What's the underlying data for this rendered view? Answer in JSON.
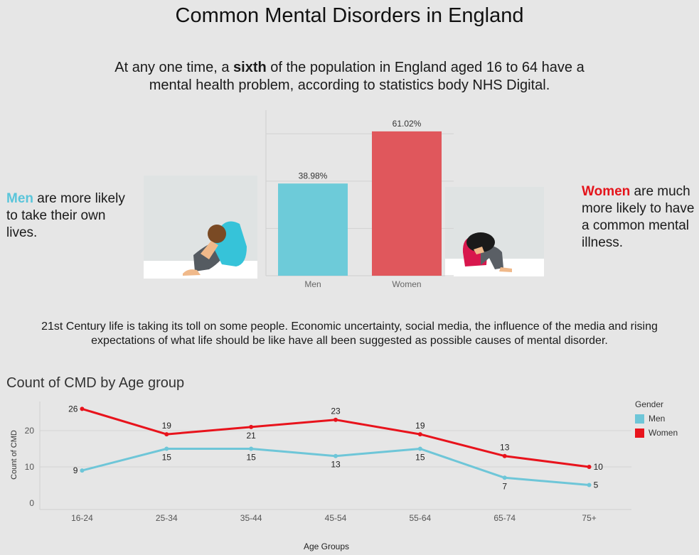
{
  "title": "Common Mental Disorders in England",
  "intro": {
    "part1": "At any one time, a ",
    "bold": "sixth",
    "part2": " of the population in England aged 16 to 64 have a mental health problem, according to statistics body NHS Digital."
  },
  "men_note": {
    "highlight": "Men",
    "rest": " are more likely to take their own lives."
  },
  "women_note": {
    "highlight": "Women",
    "rest": " are much more likely to have a common mental illness."
  },
  "middle_text": "21st Century life is taking its toll on some people. Economic uncertainty, social media, the influence of the media and rising expectations of what life should be like have all been suggested as possible causes of mental disorder.",
  "colors": {
    "men": "#6dcbd9",
    "women": "#e0575c",
    "men_line": "#6ec6d8",
    "women_line": "#e8131c",
    "men_text": "#5ac5da",
    "women_text": "#e4141b"
  },
  "chart_data": [
    {
      "type": "bar",
      "categories": [
        "Men",
        "Women"
      ],
      "values": [
        38.98,
        61.02
      ],
      "value_labels": [
        "38.98%",
        "61.02%"
      ],
      "ylim": [
        0,
        70
      ],
      "grid": true
    },
    {
      "type": "line",
      "title": "Count of CMD by Age group",
      "xlabel": "Age Groups",
      "ylabel": "Count of CMD",
      "categories": [
        "16-24",
        "25-34",
        "35-44",
        "45-54",
        "55-64",
        "65-74",
        "75+"
      ],
      "yticks": [
        0,
        10,
        20
      ],
      "ylim": [
        -2,
        28
      ],
      "legend_title": "Gender",
      "legend_position": "right",
      "series": [
        {
          "name": "Men",
          "values": [
            9,
            15,
            15,
            13,
            15,
            7,
            5
          ],
          "labels": [
            "9",
            "15",
            "15",
            "13",
            "15",
            "7",
            "5"
          ]
        },
        {
          "name": "Women",
          "values": [
            26,
            19,
            21,
            23,
            19,
            13,
            10
          ],
          "labels": [
            "26",
            "19",
            "21",
            "23",
            "19",
            "13",
            "10"
          ]
        }
      ]
    }
  ]
}
